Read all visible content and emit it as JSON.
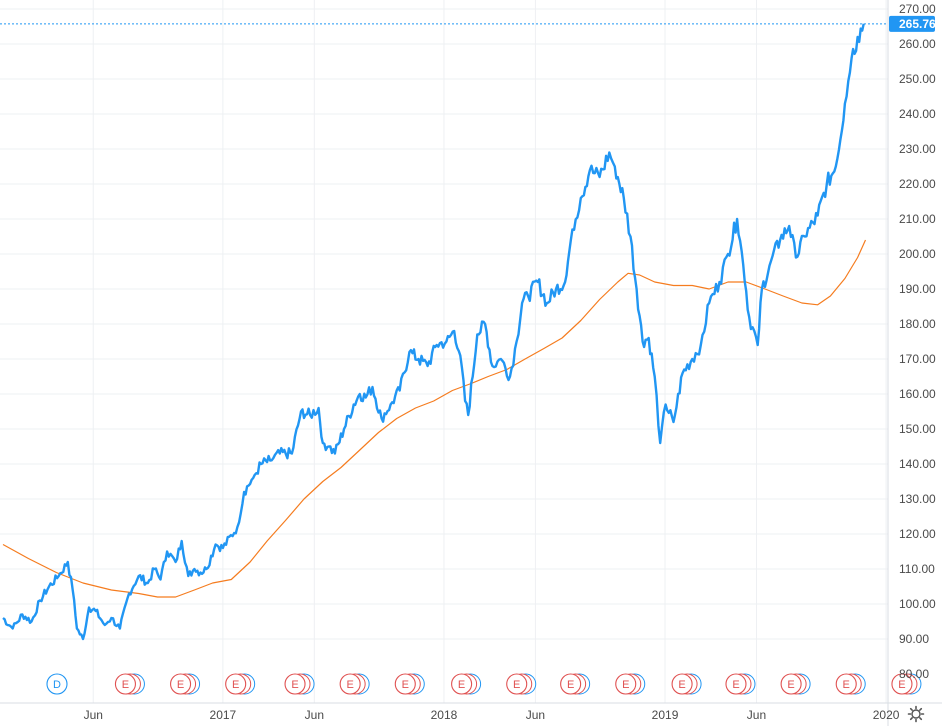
{
  "chart_data": {
    "type": "line",
    "ylim": [
      80,
      270
    ],
    "yticks": [
      "80.00",
      "90.00",
      "100.00",
      "110.00",
      "120.00",
      "130.00",
      "140.00",
      "150.00",
      "160.00",
      "170.00",
      "180.00",
      "190.00",
      "200.00",
      "210.00",
      "220.00",
      "230.00",
      "240.00",
      "250.00",
      "260.00",
      "270.00"
    ],
    "xticks": [
      "Jun",
      "2017",
      "Jun",
      "2018",
      "Jun",
      "2019",
      "Jun",
      "2020"
    ],
    "last_price": "265.76",
    "grid": true,
    "colors": {
      "price": "#2196f3",
      "moving_average": "#f57c1f",
      "price_tag": "#2196f3",
      "earnings": "#e05252",
      "dividend": "#2196f3"
    },
    "price": [
      [
        "2016-01-04",
        96
      ],
      [
        "2016-01-20",
        93
      ],
      [
        "2016-02-05",
        97
      ],
      [
        "2016-02-20",
        95
      ],
      [
        "2016-03-05",
        101
      ],
      [
        "2016-03-20",
        105
      ],
      [
        "2016-04-05",
        108
      ],
      [
        "2016-04-20",
        112
      ],
      [
        "2016-04-28",
        104
      ],
      [
        "2016-05-05",
        93
      ],
      [
        "2016-05-15",
        90
      ],
      [
        "2016-05-25",
        99
      ],
      [
        "2016-06-05",
        98
      ],
      [
        "2016-06-20",
        94
      ],
      [
        "2016-07-01",
        96
      ],
      [
        "2016-07-15",
        93
      ],
      [
        "2016-07-30",
        103
      ],
      [
        "2016-08-15",
        108
      ],
      [
        "2016-08-30",
        106
      ],
      [
        "2016-09-10",
        110
      ],
      [
        "2016-09-20",
        107
      ],
      [
        "2016-10-01",
        115
      ],
      [
        "2016-10-15",
        112
      ],
      [
        "2016-10-25",
        118
      ],
      [
        "2016-11-05",
        108
      ],
      [
        "2016-11-15",
        110
      ],
      [
        "2016-11-25",
        109
      ],
      [
        "2016-12-05",
        110
      ],
      [
        "2016-12-20",
        117
      ],
      [
        "2017-01-01",
        116
      ],
      [
        "2017-01-25",
        122
      ],
      [
        "2017-02-05",
        132
      ],
      [
        "2017-02-20",
        136
      ],
      [
        "2017-03-05",
        140
      ],
      [
        "2017-03-20",
        141
      ],
      [
        "2017-04-05",
        143
      ],
      [
        "2017-04-25",
        143
      ],
      [
        "2017-05-10",
        155
      ],
      [
        "2017-05-25",
        154
      ],
      [
        "2017-06-08",
        156
      ],
      [
        "2017-06-15",
        146
      ],
      [
        "2017-06-25",
        145
      ],
      [
        "2017-07-05",
        143
      ],
      [
        "2017-07-20",
        150
      ],
      [
        "2017-08-05",
        157
      ],
      [
        "2017-08-15",
        160
      ],
      [
        "2017-08-25",
        159
      ],
      [
        "2017-09-05",
        162
      ],
      [
        "2017-09-20",
        153
      ],
      [
        "2017-10-05",
        157
      ],
      [
        "2017-10-20",
        161
      ],
      [
        "2017-11-05",
        172
      ],
      [
        "2017-11-20",
        170
      ],
      [
        "2017-12-05",
        168
      ],
      [
        "2017-12-20",
        174
      ],
      [
        "2018-01-05",
        175
      ],
      [
        "2018-01-18",
        178
      ],
      [
        "2018-01-28",
        171
      ],
      [
        "2018-02-05",
        158
      ],
      [
        "2018-02-10",
        154
      ],
      [
        "2018-02-25",
        177
      ],
      [
        "2018-03-10",
        180
      ],
      [
        "2018-03-22",
        168
      ],
      [
        "2018-04-05",
        170
      ],
      [
        "2018-04-20",
        165
      ],
      [
        "2018-05-01",
        175
      ],
      [
        "2018-05-10",
        186
      ],
      [
        "2018-05-20",
        188
      ],
      [
        "2018-06-05",
        192
      ],
      [
        "2018-06-20",
        186
      ],
      [
        "2018-07-05",
        190
      ],
      [
        "2018-07-20",
        192
      ],
      [
        "2018-08-01",
        207
      ],
      [
        "2018-08-15",
        216
      ],
      [
        "2018-08-30",
        224
      ],
      [
        "2018-09-15",
        222
      ],
      [
        "2018-10-01",
        229
      ],
      [
        "2018-10-10",
        225
      ],
      [
        "2018-10-25",
        216
      ],
      [
        "2018-11-05",
        205
      ],
      [
        "2018-11-15",
        190
      ],
      [
        "2018-11-25",
        175
      ],
      [
        "2018-12-05",
        176
      ],
      [
        "2018-12-15",
        165
      ],
      [
        "2018-12-24",
        146
      ],
      [
        "2019-01-02",
        157
      ],
      [
        "2019-01-15",
        152
      ],
      [
        "2019-01-30",
        166
      ],
      [
        "2019-02-15",
        170
      ],
      [
        "2019-03-01",
        174
      ],
      [
        "2019-03-15",
        186
      ],
      [
        "2019-04-01",
        192
      ],
      [
        "2019-04-15",
        200
      ],
      [
        "2019-04-30",
        210
      ],
      [
        "2019-05-10",
        197
      ],
      [
        "2019-05-20",
        182
      ],
      [
        "2019-06-03",
        174
      ],
      [
        "2019-06-10",
        190
      ],
      [
        "2019-06-25",
        198
      ],
      [
        "2019-07-10",
        204
      ],
      [
        "2019-07-25",
        208
      ],
      [
        "2019-08-05",
        199
      ],
      [
        "2019-08-20",
        205
      ],
      [
        "2019-09-10",
        211
      ],
      [
        "2019-09-25",
        220
      ],
      [
        "2019-10-10",
        225
      ],
      [
        "2019-10-25",
        243
      ],
      [
        "2019-11-05",
        256
      ],
      [
        "2019-11-15",
        262
      ],
      [
        "2019-11-25",
        265.76
      ]
    ],
    "moving_average": [
      [
        "2016-01-04",
        117
      ],
      [
        "2016-02-15",
        113
      ],
      [
        "2016-04-01",
        109
      ],
      [
        "2016-05-15",
        106
      ],
      [
        "2016-07-01",
        104
      ],
      [
        "2016-08-15",
        103
      ],
      [
        "2016-09-15",
        102
      ],
      [
        "2016-10-15",
        102
      ],
      [
        "2016-11-15",
        104
      ],
      [
        "2016-12-15",
        106
      ],
      [
        "2017-01-15",
        107
      ],
      [
        "2017-02-15",
        112
      ],
      [
        "2017-03-15",
        118
      ],
      [
        "2017-04-15",
        124
      ],
      [
        "2017-05-15",
        130
      ],
      [
        "2017-06-15",
        135
      ],
      [
        "2017-07-15",
        139
      ],
      [
        "2017-08-15",
        144
      ],
      [
        "2017-09-15",
        149
      ],
      [
        "2017-10-15",
        153
      ],
      [
        "2017-11-15",
        156
      ],
      [
        "2017-12-15",
        158
      ],
      [
        "2018-01-15",
        161
      ],
      [
        "2018-02-15",
        163
      ],
      [
        "2018-03-15",
        165
      ],
      [
        "2018-04-15",
        167
      ],
      [
        "2018-05-15",
        170
      ],
      [
        "2018-06-15",
        173
      ],
      [
        "2018-07-15",
        176
      ],
      [
        "2018-08-15",
        181
      ],
      [
        "2018-09-15",
        187
      ],
      [
        "2018-10-15",
        192
      ],
      [
        "2018-11-01",
        194.5
      ],
      [
        "2018-11-20",
        194
      ],
      [
        "2018-12-15",
        192
      ],
      [
        "2019-01-15",
        191
      ],
      [
        "2019-02-15",
        191
      ],
      [
        "2019-03-15",
        190
      ],
      [
        "2019-04-15",
        192
      ],
      [
        "2019-05-15",
        192
      ],
      [
        "2019-06-15",
        190
      ],
      [
        "2019-07-15",
        188
      ],
      [
        "2019-08-15",
        186
      ],
      [
        "2019-09-10",
        185.5
      ],
      [
        "2019-10-01",
        188
      ],
      [
        "2019-10-25",
        193
      ],
      [
        "2019-11-15",
        199
      ],
      [
        "2019-11-28",
        204
      ]
    ],
    "events": [
      {
        "kind": "dividend",
        "date": "2016-01-04",
        "label": "D"
      },
      {
        "kind": "earnings",
        "date": "2016-04-26",
        "label": "E"
      },
      {
        "kind": "earnings",
        "date": "2016-07-26",
        "label": "E"
      },
      {
        "kind": "earnings",
        "date": "2016-10-25",
        "label": "E"
      },
      {
        "kind": "earnings",
        "date": "2017-01-31",
        "label": "E"
      },
      {
        "kind": "earnings",
        "date": "2017-05-02",
        "label": "E"
      },
      {
        "kind": "earnings",
        "date": "2017-08-01",
        "label": "E"
      },
      {
        "kind": "earnings",
        "date": "2017-11-02",
        "label": "E"
      },
      {
        "kind": "earnings",
        "date": "2018-02-01",
        "label": "E"
      },
      {
        "kind": "earnings",
        "date": "2018-05-01",
        "label": "E"
      },
      {
        "kind": "earnings",
        "date": "2018-07-31",
        "label": "E"
      },
      {
        "kind": "earnings",
        "date": "2018-11-01",
        "label": "E"
      },
      {
        "kind": "earnings",
        "date": "2019-01-29",
        "label": "E"
      },
      {
        "kind": "earnings",
        "date": "2019-04-30",
        "label": "E"
      },
      {
        "kind": "earnings",
        "date": "2019-07-30",
        "label": "E"
      },
      {
        "kind": "earnings",
        "date": "2019-10-30",
        "label": "E"
      },
      {
        "kind": "earnings",
        "date": "2020-01-28",
        "label": "E"
      }
    ],
    "settings_icon": "gear-icon"
  }
}
